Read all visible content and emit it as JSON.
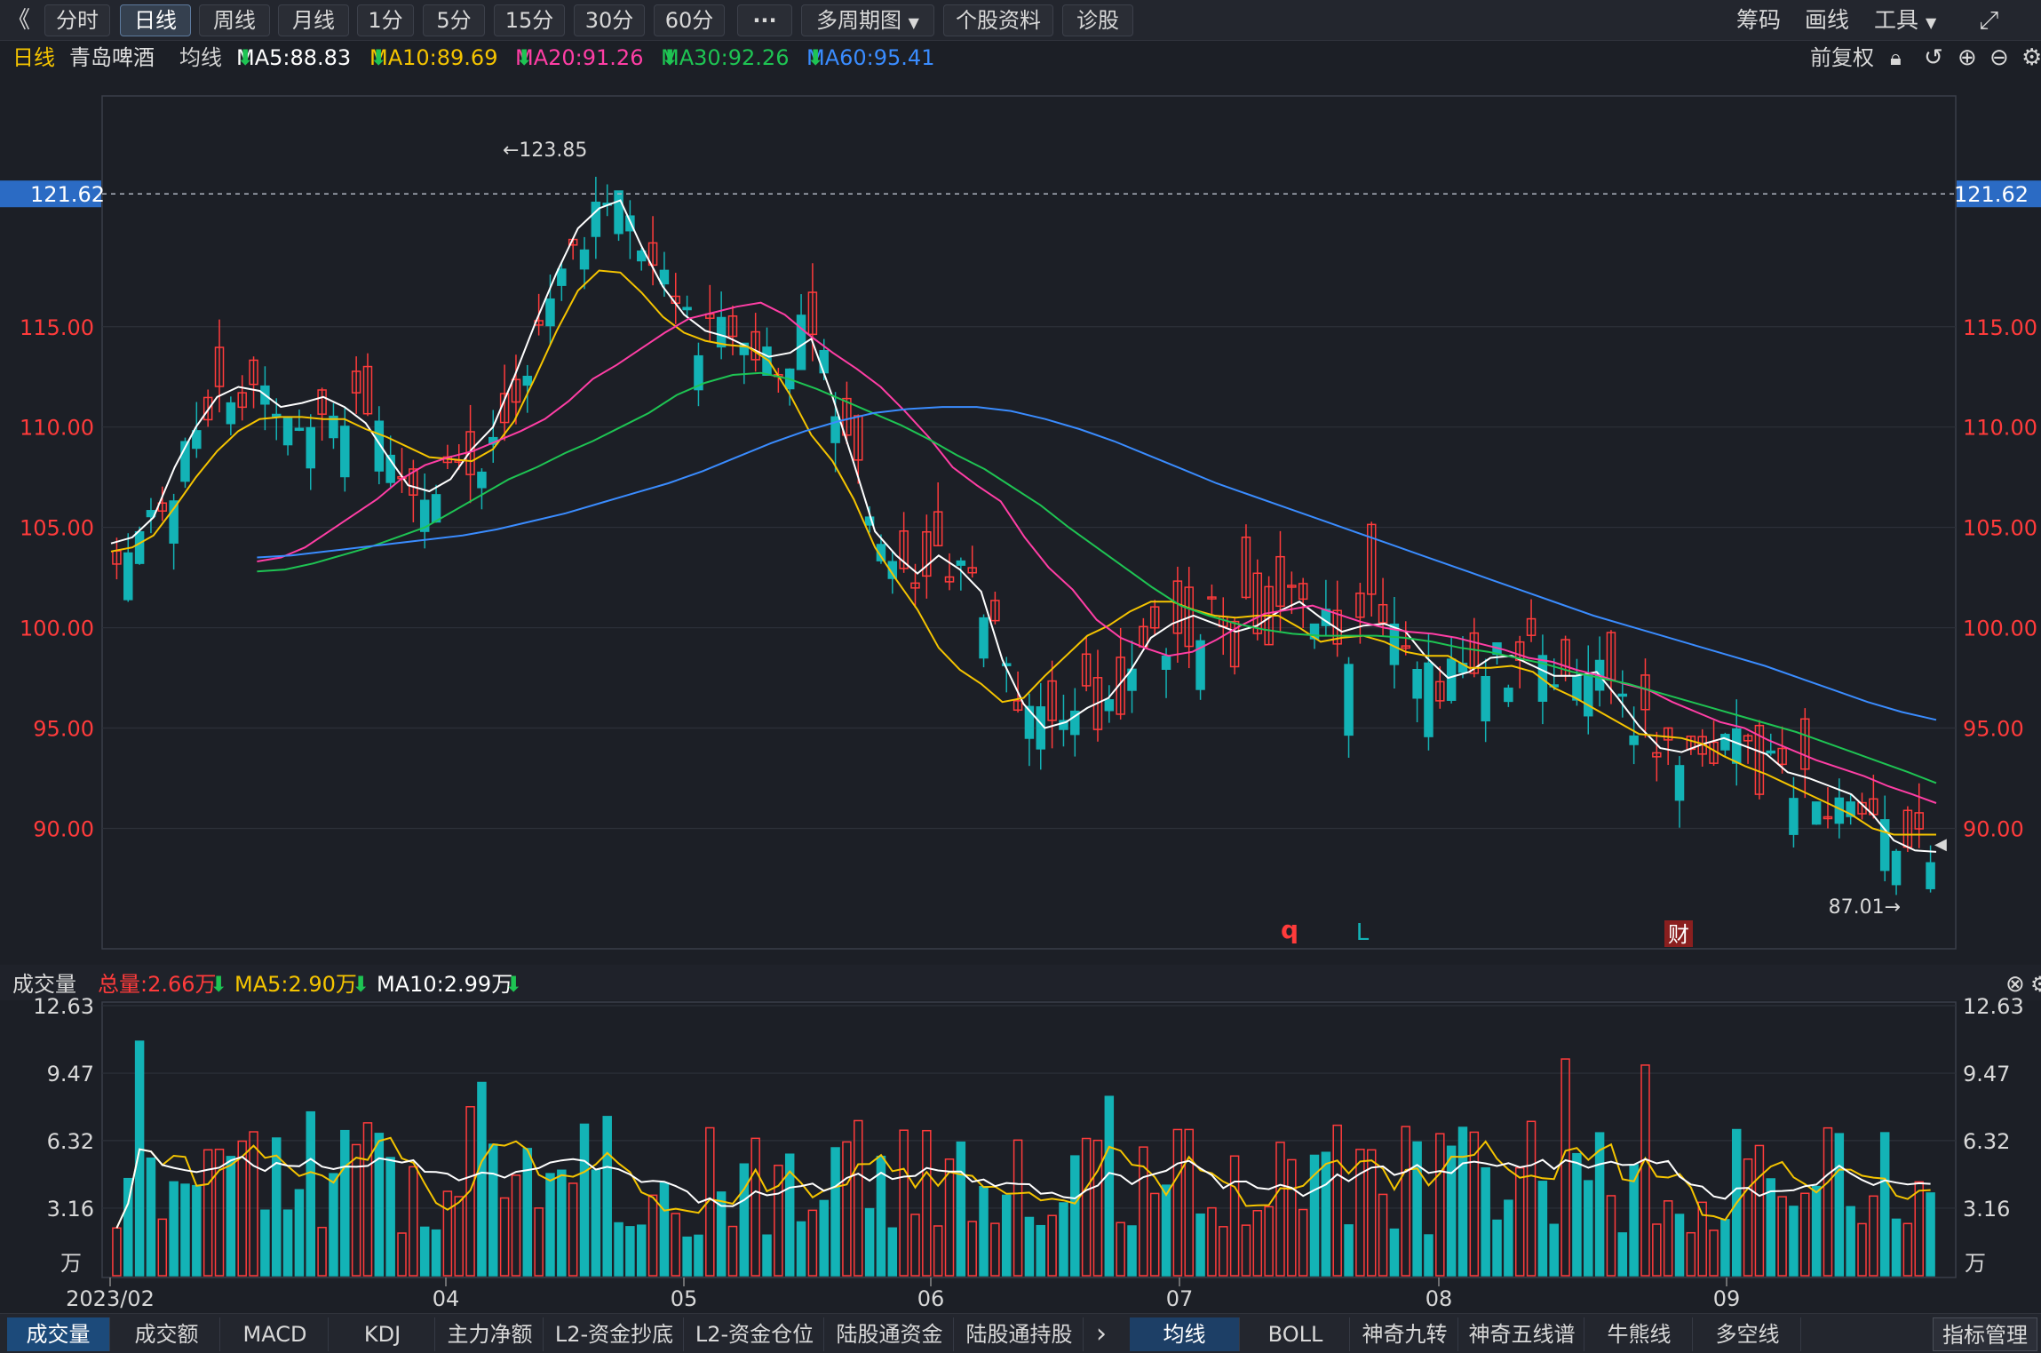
{
  "toolbar": {
    "back_icon": "《",
    "periods": [
      "分时",
      "日线",
      "周线",
      "月线",
      "1分",
      "5分",
      "15分",
      "30分",
      "60分"
    ],
    "active_period": "日线",
    "more": "···",
    "multi_period": "多周期图",
    "stock_info": "个股资料",
    "diagnose": "诊股",
    "chips": "筹码",
    "draw": "画线",
    "tools": "工具",
    "fullscreen_icon": "fullscreen-icon"
  },
  "main_legend": {
    "period": "日线",
    "stock_name": "青岛啤酒",
    "ma_title": "均线",
    "ma5": "MA5:88.83",
    "ma10": "MA10:89.69",
    "ma20": "MA20:91.26",
    "ma30": "MA30:92.26",
    "ma60": "MA60:95.41",
    "adjust": "前复权",
    "arrow": "⬇"
  },
  "colors": {
    "up": "#ff3b3b",
    "down": "#13b3b6",
    "ma5": "#ffffff",
    "ma10": "#f5c400",
    "ma20": "#ff3ea5",
    "ma30": "#1ec453",
    "ma60": "#3a8cff",
    "axis_text": "#ff3b3b"
  },
  "volume_legend": {
    "title": "成交量",
    "total": "总量:2.66万",
    "ma5": "MA5:2.90万",
    "ma10": "MA10:2.99万"
  },
  "chart_data": {
    "type": "candlestick",
    "price_axis": {
      "ticks": [
        "115.00",
        "110.00",
        "105.00",
        "100.00",
        "95.00",
        "90.00"
      ],
      "ylim": [
        84,
        126.5
      ]
    },
    "current_price_label": "121.62",
    "high_annotation": "←123.85",
    "low_annotation": "87.01→",
    "markers": [
      {
        "text": "q",
        "color": "#ff3b3b"
      },
      {
        "text": "L",
        "color": "#13b3b6"
      },
      {
        "text": "财",
        "color": "#ff6b6b"
      }
    ],
    "x_labels": [
      "2023/02",
      "04",
      "05",
      "06",
      "07",
      "08",
      "09"
    ],
    "volume_axis": {
      "ticks": [
        "12.63",
        "9.47",
        "6.32",
        "3.16"
      ],
      "unit": "万",
      "ylim": [
        0,
        12.63
      ]
    },
    "series": [
      {
        "name": "MA5",
        "values": [
          104.2,
          104.5,
          105.5,
          108.0,
          110.0,
          111.5,
          112.0,
          111.8,
          111.0,
          111.2,
          111.5,
          111.0,
          110.2,
          108.6,
          107.1,
          106.8,
          107.4,
          108.9,
          110.0,
          112.5,
          115.2,
          117.7,
          119.9,
          120.9,
          121.3,
          119.0,
          117.0,
          115.6,
          114.8,
          114.5,
          114.0,
          113.5,
          113.7,
          114.4,
          111.5,
          108.2,
          104.8,
          103.6,
          102.7,
          103.6,
          102.9,
          101.8,
          98.4,
          96.2,
          95.0,
          95.3,
          96.0,
          96.5,
          97.8,
          99.5,
          100.2,
          100.6,
          100.2,
          99.8,
          100.1,
          100.8,
          101.3,
          100.5,
          99.8,
          100.1,
          100.2,
          99.8,
          98.5,
          97.5,
          97.8,
          98.5,
          98.6,
          98.1,
          97.6,
          97.6,
          97.8,
          96.5,
          95.1,
          94.0,
          93.8,
          94.2,
          94.5,
          94.1,
          93.7,
          92.8,
          92.5,
          92.1,
          91.7,
          90.7,
          89.4,
          88.9,
          88.83
        ]
      },
      {
        "name": "MA10",
        "values": [
          103.8,
          104.0,
          104.6,
          106.0,
          107.5,
          108.8,
          109.8,
          110.4,
          110.5,
          110.5,
          110.4,
          110.4,
          109.9,
          109.5,
          109.0,
          108.5,
          108.4,
          108.3,
          108.9,
          110.3,
          112.5,
          114.8,
          116.8,
          117.8,
          117.7,
          116.7,
          115.5,
          114.7,
          114.3,
          114.1,
          114.0,
          113.3,
          111.6,
          109.6,
          108.3,
          106.4,
          104.0,
          102.4,
          100.9,
          99.0,
          97.9,
          97.2,
          96.3,
          96.5,
          97.6,
          98.6,
          99.6,
          100.1,
          100.8,
          101.3,
          101.3,
          100.9,
          100.6,
          100.5,
          100.6,
          100.6,
          100.0,
          99.3,
          99.5,
          99.6,
          99.3,
          98.8,
          98.6,
          98.6,
          98.0,
          98.0,
          98.1,
          97.8,
          97.0,
          96.5,
          95.9,
          95.3,
          94.7,
          94.6,
          94.5,
          94.2,
          93.6,
          93.1,
          92.7,
          92.2,
          91.7,
          91.2,
          90.69,
          90.0,
          89.69,
          89.69,
          89.69
        ]
      },
      {
        "name": "MA20",
        "values": [
          103.3,
          103.5,
          104.0,
          104.8,
          105.6,
          106.4,
          107.4,
          108.1,
          108.5,
          108.8,
          109.3,
          109.8,
          110.4,
          111.3,
          112.4,
          113.1,
          113.9,
          114.7,
          115.4,
          115.7,
          116.0,
          116.2,
          115.6,
          114.6,
          113.7,
          112.9,
          112.0,
          110.8,
          109.5,
          108.0,
          107.1,
          106.3,
          104.5,
          103.0,
          101.9,
          100.4,
          99.5,
          99.0,
          98.6,
          98.8,
          99.4,
          100.1,
          100.7,
          100.9,
          101.1,
          100.7,
          100.3,
          100.0,
          99.8,
          99.7,
          99.5,
          99.2,
          98.9,
          98.5,
          98.3,
          97.9,
          97.6,
          97.2,
          96.9,
          96.3,
          95.8,
          95.3,
          95.0,
          94.4,
          93.9,
          93.4,
          93.0,
          92.6,
          92.1,
          91.7,
          91.26
        ]
      },
      {
        "name": "MA30",
        "values": [
          102.8,
          102.9,
          103.2,
          103.6,
          104.0,
          104.5,
          105.0,
          105.8,
          106.6,
          107.4,
          108.0,
          108.7,
          109.3,
          110.0,
          110.7,
          111.6,
          112.2,
          112.6,
          112.7,
          112.4,
          111.9,
          111.3,
          110.7,
          110.1,
          109.4,
          108.6,
          107.9,
          107.0,
          106.1,
          105.0,
          104.0,
          103.0,
          102.0,
          101.1,
          100.6,
          100.2,
          99.9,
          99.7,
          99.6,
          99.6,
          99.6,
          99.5,
          99.3,
          99.0,
          98.8,
          98.5,
          98.2,
          97.8,
          97.5,
          97.2,
          96.8,
          96.4,
          96.0,
          95.6,
          95.2,
          94.8,
          94.3,
          93.8,
          93.3,
          92.8,
          92.26
        ]
      },
      {
        "name": "MA60",
        "values": [
          103.5,
          103.6,
          103.8,
          104.0,
          104.2,
          104.4,
          104.6,
          104.9,
          105.3,
          105.7,
          106.2,
          106.7,
          107.2,
          107.8,
          108.5,
          109.2,
          109.8,
          110.3,
          110.7,
          110.9,
          111.0,
          111.0,
          110.8,
          110.4,
          109.9,
          109.3,
          108.6,
          107.9,
          107.2,
          106.6,
          106.0,
          105.4,
          104.8,
          104.2,
          103.6,
          103.0,
          102.4,
          101.8,
          101.2,
          100.6,
          100.1,
          99.6,
          99.1,
          98.6,
          98.1,
          97.5,
          96.9,
          96.3,
          95.8,
          95.41
        ]
      }
    ]
  },
  "bottom_tabs": {
    "left": [
      "成交量",
      "成交额",
      "MACD",
      "KDJ",
      "主力净额",
      "L2-资金抄底",
      "L2-资金仓位",
      "陆股通资金",
      "陆股通持股"
    ],
    "arrow": "›",
    "right": [
      "均线",
      "BOLL",
      "神奇九转",
      "神奇五线谱",
      "牛熊线",
      "多空线"
    ],
    "indicator_manage": "指标管理"
  }
}
